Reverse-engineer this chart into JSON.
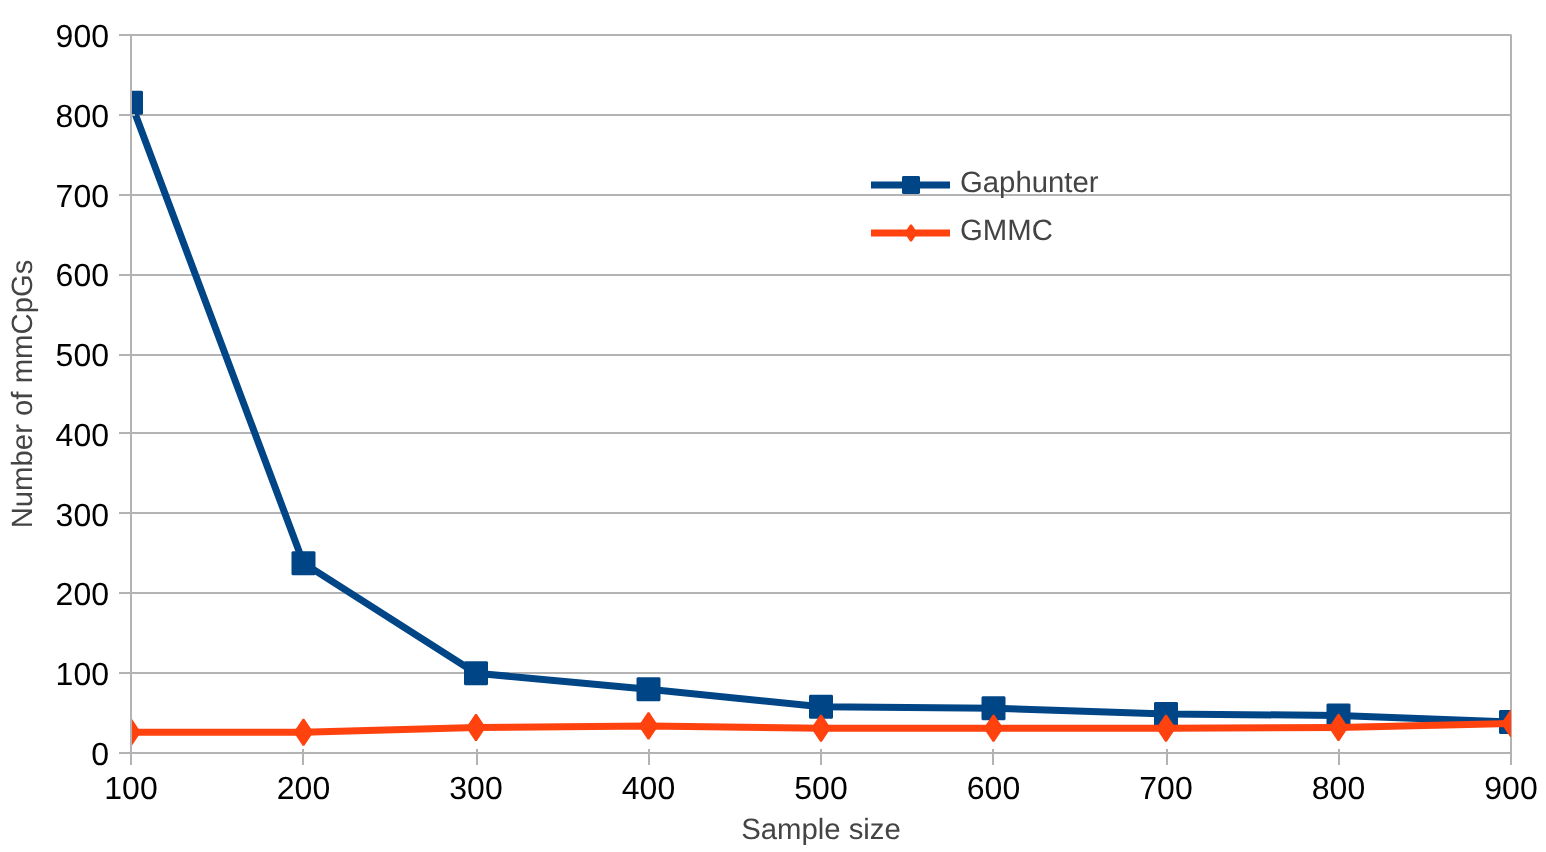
{
  "chart_data": {
    "type": "line",
    "xlabel": "Sample size",
    "ylabel": "Number of mmCpGs",
    "x": [
      100,
      200,
      300,
      400,
      500,
      600,
      700,
      800,
      900
    ],
    "xlim": [
      100,
      900
    ],
    "xticks": [
      100,
      200,
      300,
      400,
      500,
      600,
      700,
      800,
      900
    ],
    "ylim": [
      0,
      900
    ],
    "yticks": [
      0,
      100,
      200,
      300,
      400,
      500,
      600,
      700,
      800,
      900
    ],
    "grid": "y",
    "legend": "top right",
    "line_style": "solid",
    "series": [
      {
        "name": "Gaphunter",
        "color": "#004586",
        "marker": "square",
        "values": [
          815,
          238,
          100,
          80,
          58,
          56,
          49,
          47,
          39
        ]
      },
      {
        "name": "GMMC",
        "color": "#ff420e",
        "marker": "diamond",
        "values": [
          26,
          26,
          32,
          34,
          31,
          31,
          31,
          32,
          37
        ]
      }
    ]
  }
}
